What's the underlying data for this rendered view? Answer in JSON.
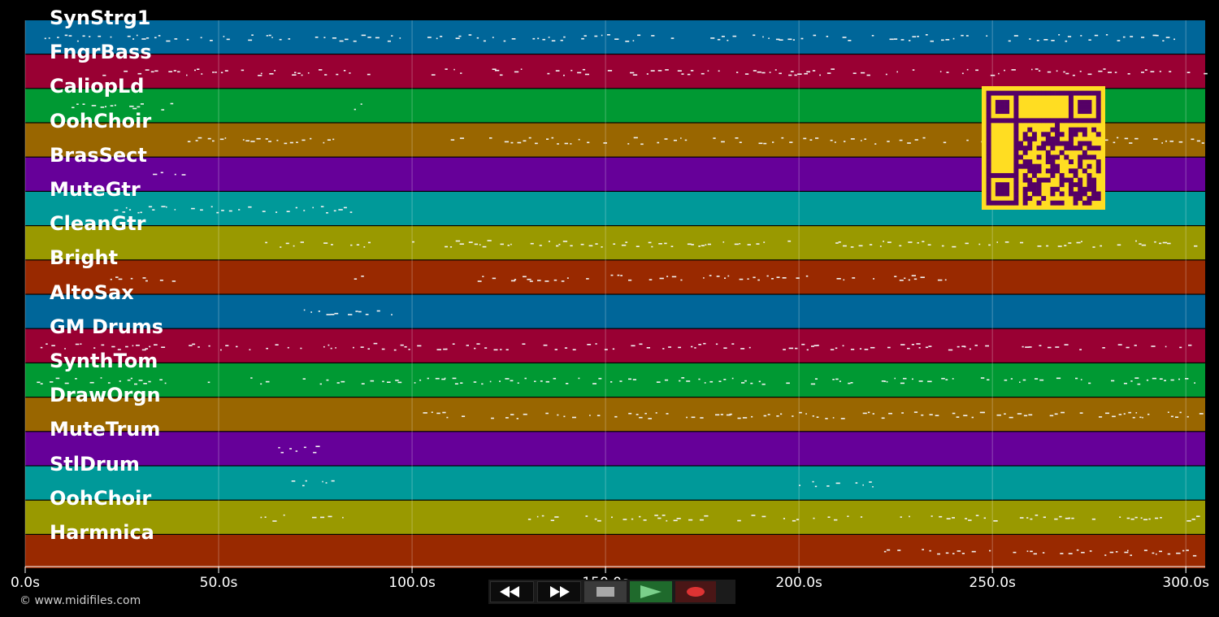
{
  "tracks": [
    {
      "name": "SynStrg1",
      "color": "#006699"
    },
    {
      "name": "FngrBass",
      "color": "#990033"
    },
    {
      "name": "CaliopLd",
      "color": "#009933"
    },
    {
      "name": "OohChoir",
      "color": "#996600"
    },
    {
      "name": "BrasSect",
      "color": "#660099"
    },
    {
      "name": "MuteGtr",
      "color": "#009999"
    },
    {
      "name": "CleanGtr",
      "color": "#999900"
    },
    {
      "name": "Bright",
      "color": "#992900"
    },
    {
      "name": "AltoSax",
      "color": "#006699"
    },
    {
      "name": "GM Drums",
      "color": "#990033"
    },
    {
      "name": "SynthTom",
      "color": "#009933"
    },
    {
      "name": "DrawOrgn",
      "color": "#996600"
    },
    {
      "name": "MuteTrum",
      "color": "#660099"
    },
    {
      "name": "StlDrum",
      "color": "#009999"
    },
    {
      "name": "OohChoir",
      "color": "#999900"
    },
    {
      "name": "Harmnica",
      "color": "#992900"
    }
  ],
  "timeline": {
    "ticks": [
      "0.0s",
      "50.0s",
      "100.0s",
      "150.0s",
      "200.0s",
      "250.0s",
      "300.0s"
    ],
    "max_seconds": 305
  },
  "footer": {
    "copyright": "© www.midifiles.com"
  },
  "transport": {
    "rewind_icon": "rewind-icon",
    "fast_forward_icon": "fast-forward-icon",
    "stop_icon": "stop-icon",
    "play_icon": "play-icon",
    "record_icon": "record-icon"
  },
  "qr": {
    "fg": "#ffdd22",
    "bg": "#550066"
  }
}
